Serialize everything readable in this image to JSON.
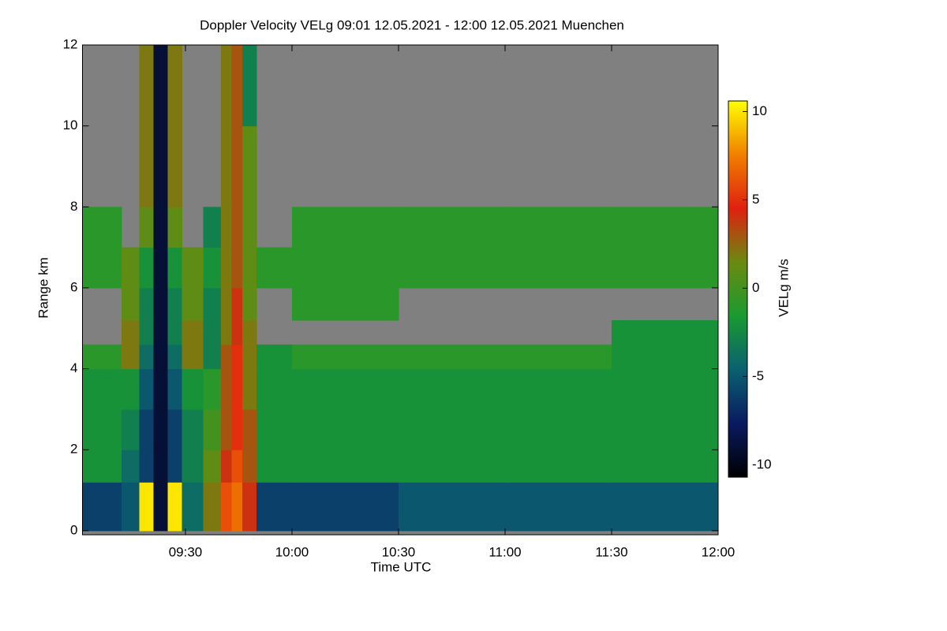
{
  "chart_data": {
    "type": "heatmap",
    "title": "Doppler Velocity VELg   09:01 12.05.2021 - 12:00 12.05.2021 Muenchen",
    "x_label": "Time UTC",
    "y_label": "Range km",
    "colorbar_label": "VELg m/s",
    "xbins": [
      541,
      552,
      557,
      561,
      565,
      569,
      575,
      580,
      583,
      586,
      590,
      600,
      630,
      660,
      690,
      720
    ],
    "ybins": [
      0,
      1.2,
      2,
      3,
      4,
      4.6,
      5.2,
      6,
      7,
      8,
      10,
      12
    ],
    "z": [
      [
        -6,
        -5,
        10,
        -9,
        10,
        -4,
        2,
        6,
        7,
        4,
        -6,
        -6,
        -5,
        -5,
        -5
      ],
      [
        -2,
        -4,
        -6,
        -9,
        -6,
        -3,
        1,
        4,
        6,
        3,
        -2,
        -2,
        -2,
        -2,
        -2
      ],
      [
        -2,
        -3,
        -6,
        -9,
        -6,
        -3,
        0,
        3,
        5,
        3,
        -2,
        -2,
        -2,
        -2,
        -2
      ],
      [
        -2,
        -2,
        -5,
        -9,
        -5,
        -2,
        -1,
        3,
        5,
        2,
        -2,
        -2,
        -2,
        -2,
        -2
      ],
      [
        -1,
        2,
        -4,
        -9,
        -4,
        2,
        -3,
        3,
        5,
        2,
        -2,
        -1,
        -1,
        -1,
        -2
      ],
      [
        null,
        2,
        -3,
        -9,
        -3,
        2,
        -3,
        2,
        4,
        2,
        null,
        null,
        null,
        null,
        -2
      ],
      [
        null,
        1,
        -3,
        -9,
        -3,
        1,
        -3,
        2,
        4,
        1,
        null,
        -1,
        null,
        null,
        null
      ],
      [
        -1,
        1,
        -2,
        -9,
        -2,
        1,
        -2,
        2,
        3,
        1,
        -1,
        -1,
        -1,
        -1,
        -1
      ],
      [
        -1,
        null,
        1,
        -9,
        1,
        null,
        -3,
        2,
        3,
        1,
        null,
        -1,
        -1,
        -1,
        -1
      ],
      [
        null,
        null,
        2,
        -9,
        2,
        null,
        null,
        2,
        3,
        1,
        null,
        null,
        null,
        null,
        null
      ],
      [
        null,
        null,
        2,
        -9,
        2,
        null,
        null,
        2,
        3,
        -3,
        null,
        null,
        null,
        null,
        null
      ]
    ],
    "xlim": [
      541,
      720
    ],
    "xticks": [
      {
        "value": 570,
        "label": "09:30"
      },
      {
        "value": 600,
        "label": "10:00"
      },
      {
        "value": 630,
        "label": "10:30"
      },
      {
        "value": 660,
        "label": "11:00"
      },
      {
        "value": 690,
        "label": "11:30"
      },
      {
        "value": 720,
        "label": "12:00"
      }
    ],
    "ylim": [
      -0.1,
      12
    ],
    "yticks": [
      0,
      2,
      4,
      6,
      8,
      10,
      12
    ],
    "zlim": [
      -10.7,
      10.6
    ],
    "zticks": [
      -10,
      -5,
      0,
      5,
      10
    ],
    "colormap": [
      "#000000",
      "#0a1a60",
      "#0a6070",
      "#1a9a30",
      "#6a8a10",
      "#e02010",
      "#f08000",
      "#ffff00"
    ],
    "missing_color": "#808080"
  }
}
